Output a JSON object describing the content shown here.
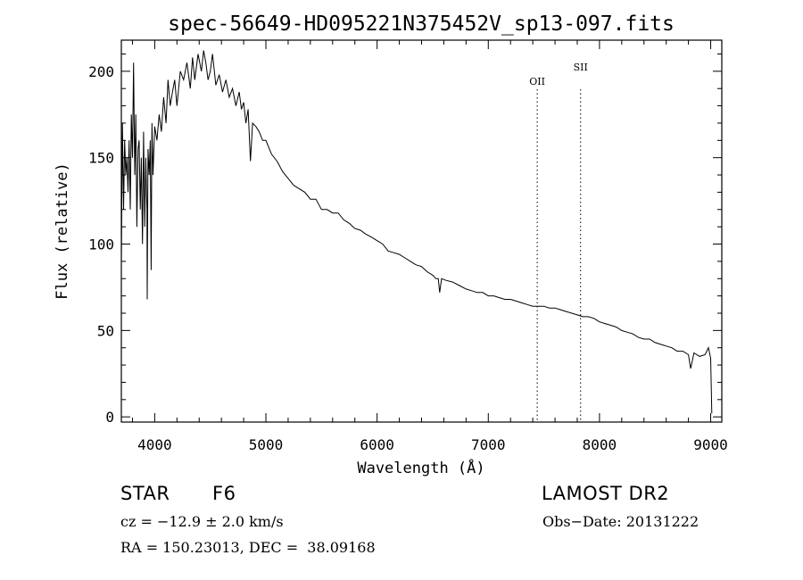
{
  "chart_data": {
    "type": "line",
    "title": "spec-56649-HD095221N375452V_sp13-097.fits",
    "xlabel": "Wavelength (Å)",
    "ylabel": "Flux (relative)",
    "xlim": [
      3700,
      9100
    ],
    "ylim": [
      -3,
      218
    ],
    "xticks": [
      4000,
      5000,
      6000,
      7000,
      8000,
      9000
    ],
    "yticks": [
      0,
      50,
      100,
      150,
      200
    ],
    "grid": false,
    "series": [
      {
        "x": [
          3700,
          3710,
          3720,
          3730,
          3740,
          3750,
          3760,
          3770,
          3780,
          3790,
          3800,
          3810,
          3820,
          3830,
          3840,
          3850,
          3860,
          3870,
          3880,
          3890,
          3900,
          3910,
          3920,
          3930,
          3933,
          3940,
          3950,
          3960,
          3968,
          3975,
          3985,
          4000,
          4020,
          4040,
          4060,
          4080,
          4102,
          4120,
          4140,
          4160,
          4180,
          4200,
          4230,
          4260,
          4290,
          4320,
          4340,
          4360,
          4390,
          4420,
          4440,
          4460,
          4480,
          4500,
          4520,
          4550,
          4580,
          4610,
          4640,
          4670,
          4700,
          4730,
          4760,
          4780,
          4800,
          4820,
          4840,
          4861,
          4880,
          4910,
          4940,
          4970,
          5000,
          5050,
          5100,
          5150,
          5200,
          5250,
          5300,
          5350,
          5400,
          5450,
          5500,
          5550,
          5600,
          5650,
          5700,
          5750,
          5800,
          5850,
          5893,
          5950,
          6000,
          6050,
          6100,
          6150,
          6200,
          6250,
          6300,
          6350,
          6400,
          6450,
          6500,
          6530,
          6550,
          6563,
          6580,
          6620,
          6680,
          6740,
          6800,
          6850,
          6900,
          6950,
          7000,
          7050,
          7100,
          7150,
          7200,
          7250,
          7300,
          7350,
          7400,
          7450,
          7500,
          7550,
          7600,
          7650,
          7700,
          7750,
          7800,
          7850,
          7900,
          7950,
          8000,
          8050,
          8100,
          8150,
          8200,
          8250,
          8300,
          8350,
          8400,
          8450,
          8500,
          8550,
          8600,
          8650,
          8700,
          8750,
          8800,
          8820,
          8850,
          8900,
          8950,
          8980,
          9000,
          9010
        ],
        "values": [
          90,
          170,
          120,
          160,
          140,
          150,
          130,
          160,
          120,
          175,
          150,
          205,
          140,
          175,
          110,
          155,
          160,
          120,
          150,
          100,
          165,
          110,
          150,
          120,
          68,
          155,
          140,
          160,
          85,
          170,
          140,
          168,
          160,
          175,
          165,
          185,
          170,
          195,
          180,
          188,
          195,
          180,
          200,
          195,
          205,
          190,
          208,
          195,
          210,
          200,
          212,
          205,
          195,
          200,
          210,
          192,
          198,
          188,
          195,
          185,
          190,
          180,
          188,
          178,
          182,
          170,
          178,
          148,
          170,
          168,
          165,
          160,
          160,
          152,
          148,
          142,
          138,
          134,
          132,
          130,
          126,
          126,
          120,
          120,
          118,
          118,
          114,
          112,
          109,
          108,
          106,
          104,
          102,
          100,
          96,
          95,
          94,
          92,
          90,
          88,
          87,
          84,
          82,
          80,
          80,
          72,
          80,
          79,
          78,
          76,
          74,
          73,
          72,
          72,
          70,
          70,
          69,
          68,
          68,
          67,
          66,
          65,
          64,
          64,
          64,
          63,
          63,
          62,
          61,
          60,
          59,
          58,
          58,
          57,
          55,
          54,
          53,
          52,
          50,
          49,
          48,
          46,
          45,
          45,
          43,
          42,
          41,
          40,
          38,
          38,
          36,
          28,
          37,
          35,
          36,
          40,
          34,
          2
        ]
      }
    ],
    "annotations": [
      {
        "text": "OII",
        "x": 7440
      },
      {
        "text": "SII",
        "x": 7830
      }
    ]
  },
  "info": {
    "object_type": "STAR",
    "subclass": "F6",
    "survey": "LAMOST DR2",
    "cz_line": "cz = −12.9 ± 2.0 km/s",
    "obs_date": "Obs−Date: 20131222",
    "coords": "RA = 150.23013, DEC =  38.09168"
  }
}
